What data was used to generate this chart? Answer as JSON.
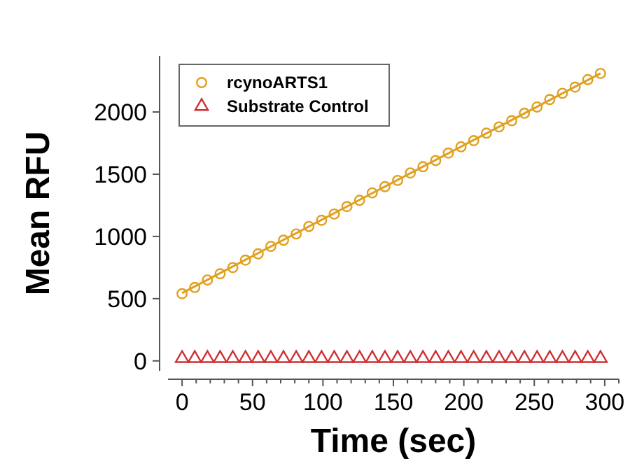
{
  "chart_data": {
    "type": "scatter",
    "xlabel": "Time (sec)",
    "ylabel": "Mean RFU",
    "x": [
      0,
      9,
      18,
      27,
      36,
      45,
      54,
      63,
      72,
      81,
      90,
      99,
      108,
      117,
      126,
      135,
      144,
      153,
      162,
      171,
      180,
      189,
      198,
      207,
      216,
      225,
      234,
      243,
      252,
      261,
      270,
      279,
      288,
      297
    ],
    "series": [
      {
        "name": "rcynoARTS1",
        "color": "#e0a020",
        "marker": "circle",
        "values": [
          540,
          590,
          650,
          700,
          750,
          810,
          860,
          920,
          970,
          1020,
          1080,
          1130,
          1180,
          1240,
          1290,
          1350,
          1400,
          1450,
          1510,
          1560,
          1610,
          1670,
          1720,
          1770,
          1830,
          1880,
          1930,
          1990,
          2040,
          2100,
          2150,
          2200,
          2260,
          2310
        ]
      },
      {
        "name": "Substrate Control",
        "color": "#d03030",
        "marker": "triangle",
        "values": [
          20,
          20,
          20,
          20,
          20,
          20,
          20,
          20,
          20,
          20,
          20,
          20,
          20,
          20,
          20,
          20,
          20,
          20,
          20,
          20,
          20,
          20,
          20,
          20,
          20,
          20,
          20,
          20,
          20,
          20,
          20,
          20,
          20,
          20
        ]
      },
      {
        "type": "line",
        "color": "#e0a020",
        "x": [
          0,
          297
        ],
        "values": [
          545,
          2310
        ]
      }
    ],
    "xlim": [
      -10,
      310
    ],
    "ylim": [
      -80,
      2450
    ],
    "xticks": [
      0,
      {
        "value": 10,
        "label": null
      },
      {
        "value": 20,
        "label": null
      },
      {
        "value": 30,
        "label": null
      },
      {
        "value": 40,
        "label": null
      },
      50,
      {
        "value": 60,
        "label": null
      },
      {
        "value": 70,
        "label": null
      },
      {
        "value": 80,
        "label": null
      },
      {
        "value": 90,
        "label": null
      },
      100,
      {
        "value": 110,
        "label": null
      },
      {
        "value": 120,
        "label": null
      },
      {
        "value": 130,
        "label": null
      },
      {
        "value": 140,
        "label": null
      },
      150,
      {
        "value": 160,
        "label": null
      },
      {
        "value": 170,
        "label": null
      },
      {
        "value": 180,
        "label": null
      },
      {
        "value": 190,
        "label": null
      },
      200,
      {
        "value": 210,
        "label": null
      },
      {
        "value": 220,
        "label": null
      },
      {
        "value": 230,
        "label": null
      },
      {
        "value": 240,
        "label": null
      },
      250,
      {
        "value": 260,
        "label": null
      },
      {
        "value": 270,
        "label": null
      },
      {
        "value": 280,
        "label": null
      },
      {
        "value": 290,
        "label": null
      },
      300,
      {
        "value": 310,
        "label": null
      }
    ],
    "yticks": [
      0,
      500,
      1000,
      1500,
      2000
    ],
    "grid": false,
    "legend": "top left"
  }
}
